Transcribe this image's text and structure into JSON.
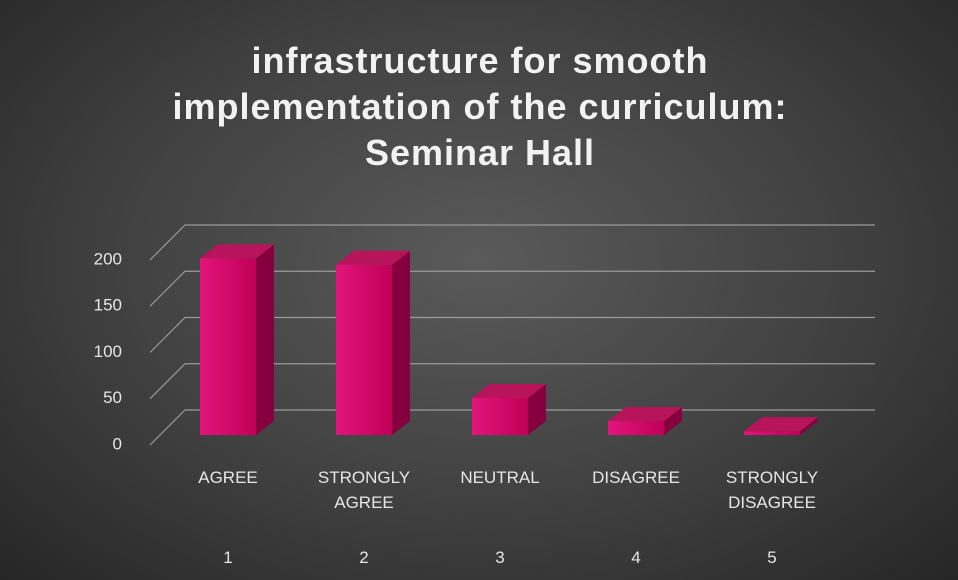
{
  "chart_data": {
    "type": "bar3d",
    "title": "infrastructure for smooth implementation of the curriculum: Seminar Hall",
    "categories": [
      "AGREE",
      "STRONGLY AGREE",
      "NEUTRAL",
      "DISAGREE",
      "STRONGLY DISAGREE"
    ],
    "category_numbers": [
      1,
      2,
      3,
      4,
      5
    ],
    "values": [
      191,
      184,
      40,
      15,
      4
    ],
    "color": "#d10c66",
    "ylim": [
      0,
      200
    ],
    "yticks": [
      0,
      50,
      100,
      150,
      200
    ],
    "grid": true
  }
}
